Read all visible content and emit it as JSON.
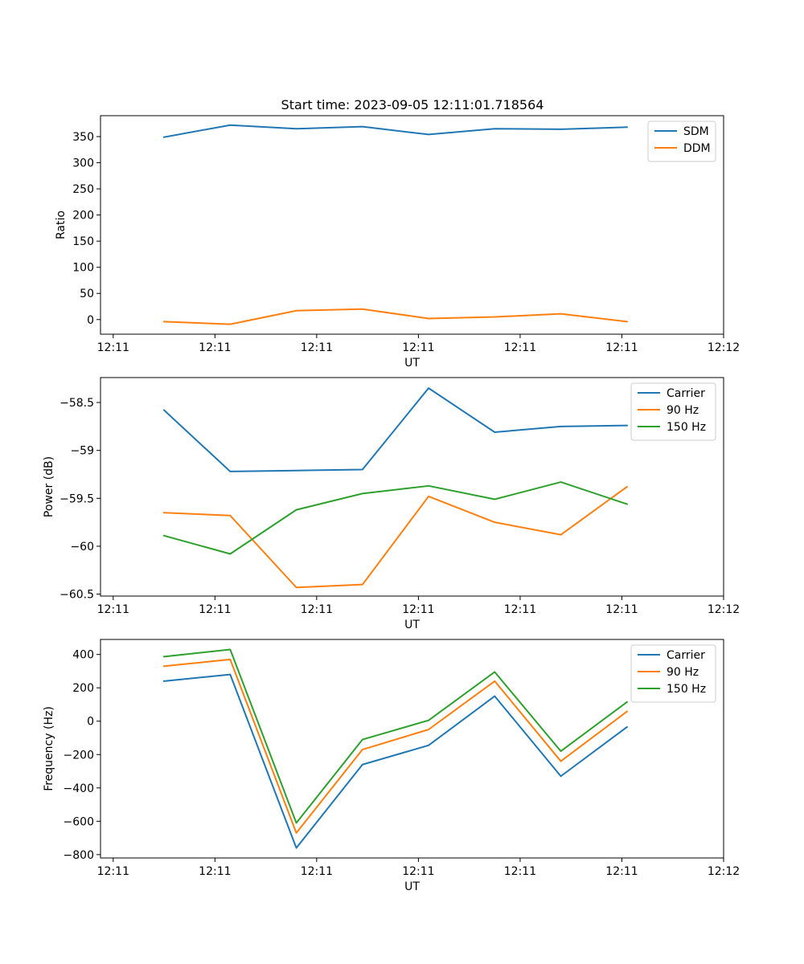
{
  "figure": {
    "title": "Start time: 2023-09-05 12:11:01.718564"
  },
  "colors": {
    "blue": "#1f77b4",
    "orange": "#ff7f0e",
    "green": "#2ca02c"
  },
  "chart_data": [
    {
      "type": "line",
      "title": "Start time: 2023-09-05 12:11:01.718564",
      "xlabel": "UT",
      "ylabel": "Ratio",
      "x_ticks": [
        "12:11",
        "12:11",
        "12:11",
        "12:11",
        "12:11",
        "12:11",
        "12:12"
      ],
      "xlim": [
        -0.125,
        6.0
      ],
      "ylim": [
        -28,
        390
      ],
      "y_ticks": [
        0,
        50,
        100,
        150,
        200,
        250,
        300,
        350
      ],
      "legend_position": "top-right",
      "x": [
        0.5,
        1.15,
        1.8,
        2.45,
        3.1,
        3.75,
        4.4,
        5.05
      ],
      "series": [
        {
          "name": "SDM",
          "color": "#1f77b4",
          "values": [
            349,
            372,
            365,
            369,
            354,
            365,
            364,
            368
          ]
        },
        {
          "name": "DDM",
          "color": "#ff7f0e",
          "values": [
            -4,
            -9,
            17,
            20,
            2,
            5,
            11,
            -4
          ]
        }
      ]
    },
    {
      "type": "line",
      "title": "",
      "xlabel": "UT",
      "ylabel": "Power (dB)",
      "x_ticks": [
        "12:11",
        "12:11",
        "12:11",
        "12:11",
        "12:11",
        "12:11",
        "12:12"
      ],
      "xlim": [
        -0.125,
        6.0
      ],
      "ylim": [
        -60.52,
        -58.24
      ],
      "y_ticks": [
        -60.5,
        -60.0,
        -59.5,
        -59.0,
        -58.5
      ],
      "legend_position": "top-right",
      "x": [
        0.5,
        1.15,
        1.8,
        2.45,
        3.1,
        3.75,
        4.4,
        5.05
      ],
      "series": [
        {
          "name": "Carrier",
          "color": "#1f77b4",
          "values": [
            -58.58,
            -59.22,
            -59.21,
            -59.2,
            -58.35,
            -58.81,
            -58.75,
            -58.74
          ]
        },
        {
          "name": "90 Hz",
          "color": "#ff7f0e",
          "values": [
            -59.65,
            -59.68,
            -60.43,
            -60.4,
            -59.48,
            -59.75,
            -59.88,
            -59.38
          ]
        },
        {
          "name": "150 Hz",
          "color": "#2ca02c",
          "values": [
            -59.89,
            -60.08,
            -59.62,
            -59.45,
            -59.37,
            -59.51,
            -59.33,
            -59.56
          ]
        }
      ]
    },
    {
      "type": "line",
      "title": "",
      "xlabel": "UT",
      "ylabel": "Frequency (Hz)",
      "x_ticks": [
        "12:11",
        "12:11",
        "12:11",
        "12:11",
        "12:11",
        "12:11",
        "12:12"
      ],
      "xlim": [
        -0.125,
        6.0
      ],
      "ylim": [
        -820,
        490
      ],
      "y_ticks": [
        -800,
        -600,
        -400,
        -200,
        0,
        200,
        400
      ],
      "legend_position": "top-right",
      "x": [
        0.5,
        1.15,
        1.8,
        2.45,
        3.1,
        3.75,
        4.4,
        5.05
      ],
      "series": [
        {
          "name": "Carrier",
          "color": "#1f77b4",
          "values": [
            240,
            280,
            -760,
            -260,
            -145,
            150,
            -330,
            -35
          ]
        },
        {
          "name": "90 Hz",
          "color": "#ff7f0e",
          "values": [
            330,
            370,
            -670,
            -170,
            -50,
            240,
            -240,
            58
          ]
        },
        {
          "name": "150 Hz",
          "color": "#2ca02c",
          "values": [
            387,
            430,
            -610,
            -110,
            5,
            295,
            -180,
            115
          ]
        }
      ]
    }
  ]
}
